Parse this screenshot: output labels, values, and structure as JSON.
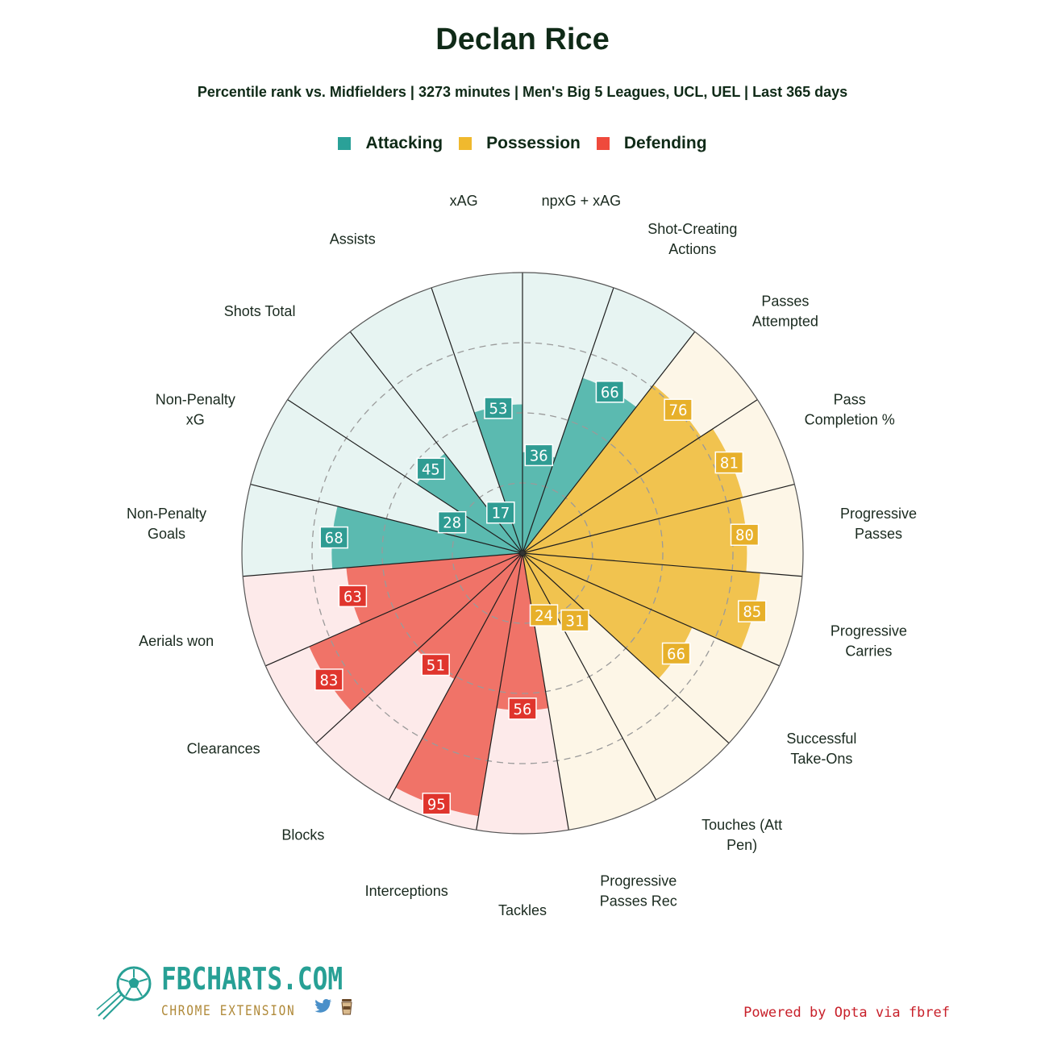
{
  "title": "Declan Rice",
  "subtitle": "Percentile rank vs. Midfielders | 3273 minutes | Men's Big 5 Leagues, UCL, UEL | Last 365 days",
  "legend": [
    {
      "label": "Attacking",
      "color": "#2aa198"
    },
    {
      "label": "Possession",
      "color": "#f0b92e"
    },
    {
      "label": "Defending",
      "color": "#ef4a3c"
    }
  ],
  "colors": {
    "Attacking": {
      "fill": "#5bbab0",
      "bg": "#e7f4f2",
      "box": "#2f9c93"
    },
    "Possession": {
      "fill": "#f1c34f",
      "bg": "#fdf6e7",
      "box": "#e7b02a"
    },
    "Defending": {
      "fill": "#f07368",
      "bg": "#fdeaea",
      "box": "#e0352d"
    }
  },
  "chart_data": {
    "type": "polar-bar",
    "title": "Declan Rice",
    "rlim": [
      0,
      100
    ],
    "grid_rings": [
      25,
      50,
      75
    ],
    "stats": [
      {
        "label": "npxG + xAG",
        "value": 36,
        "group": "Attacking"
      },
      {
        "label": "Shot-Creating\nActions",
        "value": 66,
        "group": "Attacking"
      },
      {
        "label": "Passes\nAttempted",
        "value": 76,
        "group": "Possession"
      },
      {
        "label": "Pass\nCompletion %",
        "value": 81,
        "group": "Possession"
      },
      {
        "label": "Progressive\nPasses",
        "value": 80,
        "group": "Possession"
      },
      {
        "label": "Progressive\nCarries",
        "value": 85,
        "group": "Possession"
      },
      {
        "label": "Successful\nTake-Ons",
        "value": 66,
        "group": "Possession"
      },
      {
        "label": "Touches (Att\nPen)",
        "value": 31,
        "group": "Possession"
      },
      {
        "label": "Progressive\nPasses Rec",
        "value": 24,
        "group": "Possession"
      },
      {
        "label": "Tackles",
        "value": 56,
        "group": "Defending"
      },
      {
        "label": "Interceptions",
        "value": 95,
        "group": "Defending"
      },
      {
        "label": "Blocks",
        "value": 51,
        "group": "Defending"
      },
      {
        "label": "Clearances",
        "value": 83,
        "group": "Defending"
      },
      {
        "label": "Aerials won",
        "value": 63,
        "group": "Defending"
      },
      {
        "label": "Non-Penalty\nGoals",
        "value": 68,
        "group": "Attacking"
      },
      {
        "label": "Non-Penalty\nxG",
        "value": 28,
        "group": "Attacking"
      },
      {
        "label": "Shots Total",
        "value": 45,
        "group": "Attacking"
      },
      {
        "label": "Assists",
        "value": 17,
        "group": "Attacking"
      },
      {
        "label": "xAG",
        "value": 53,
        "group": "Attacking"
      }
    ]
  },
  "brand": {
    "name": "FBCHARTS.COM",
    "sub": "CHROME EXTENSION"
  },
  "footer": {
    "powered": "Powered by Opta via fbref"
  }
}
